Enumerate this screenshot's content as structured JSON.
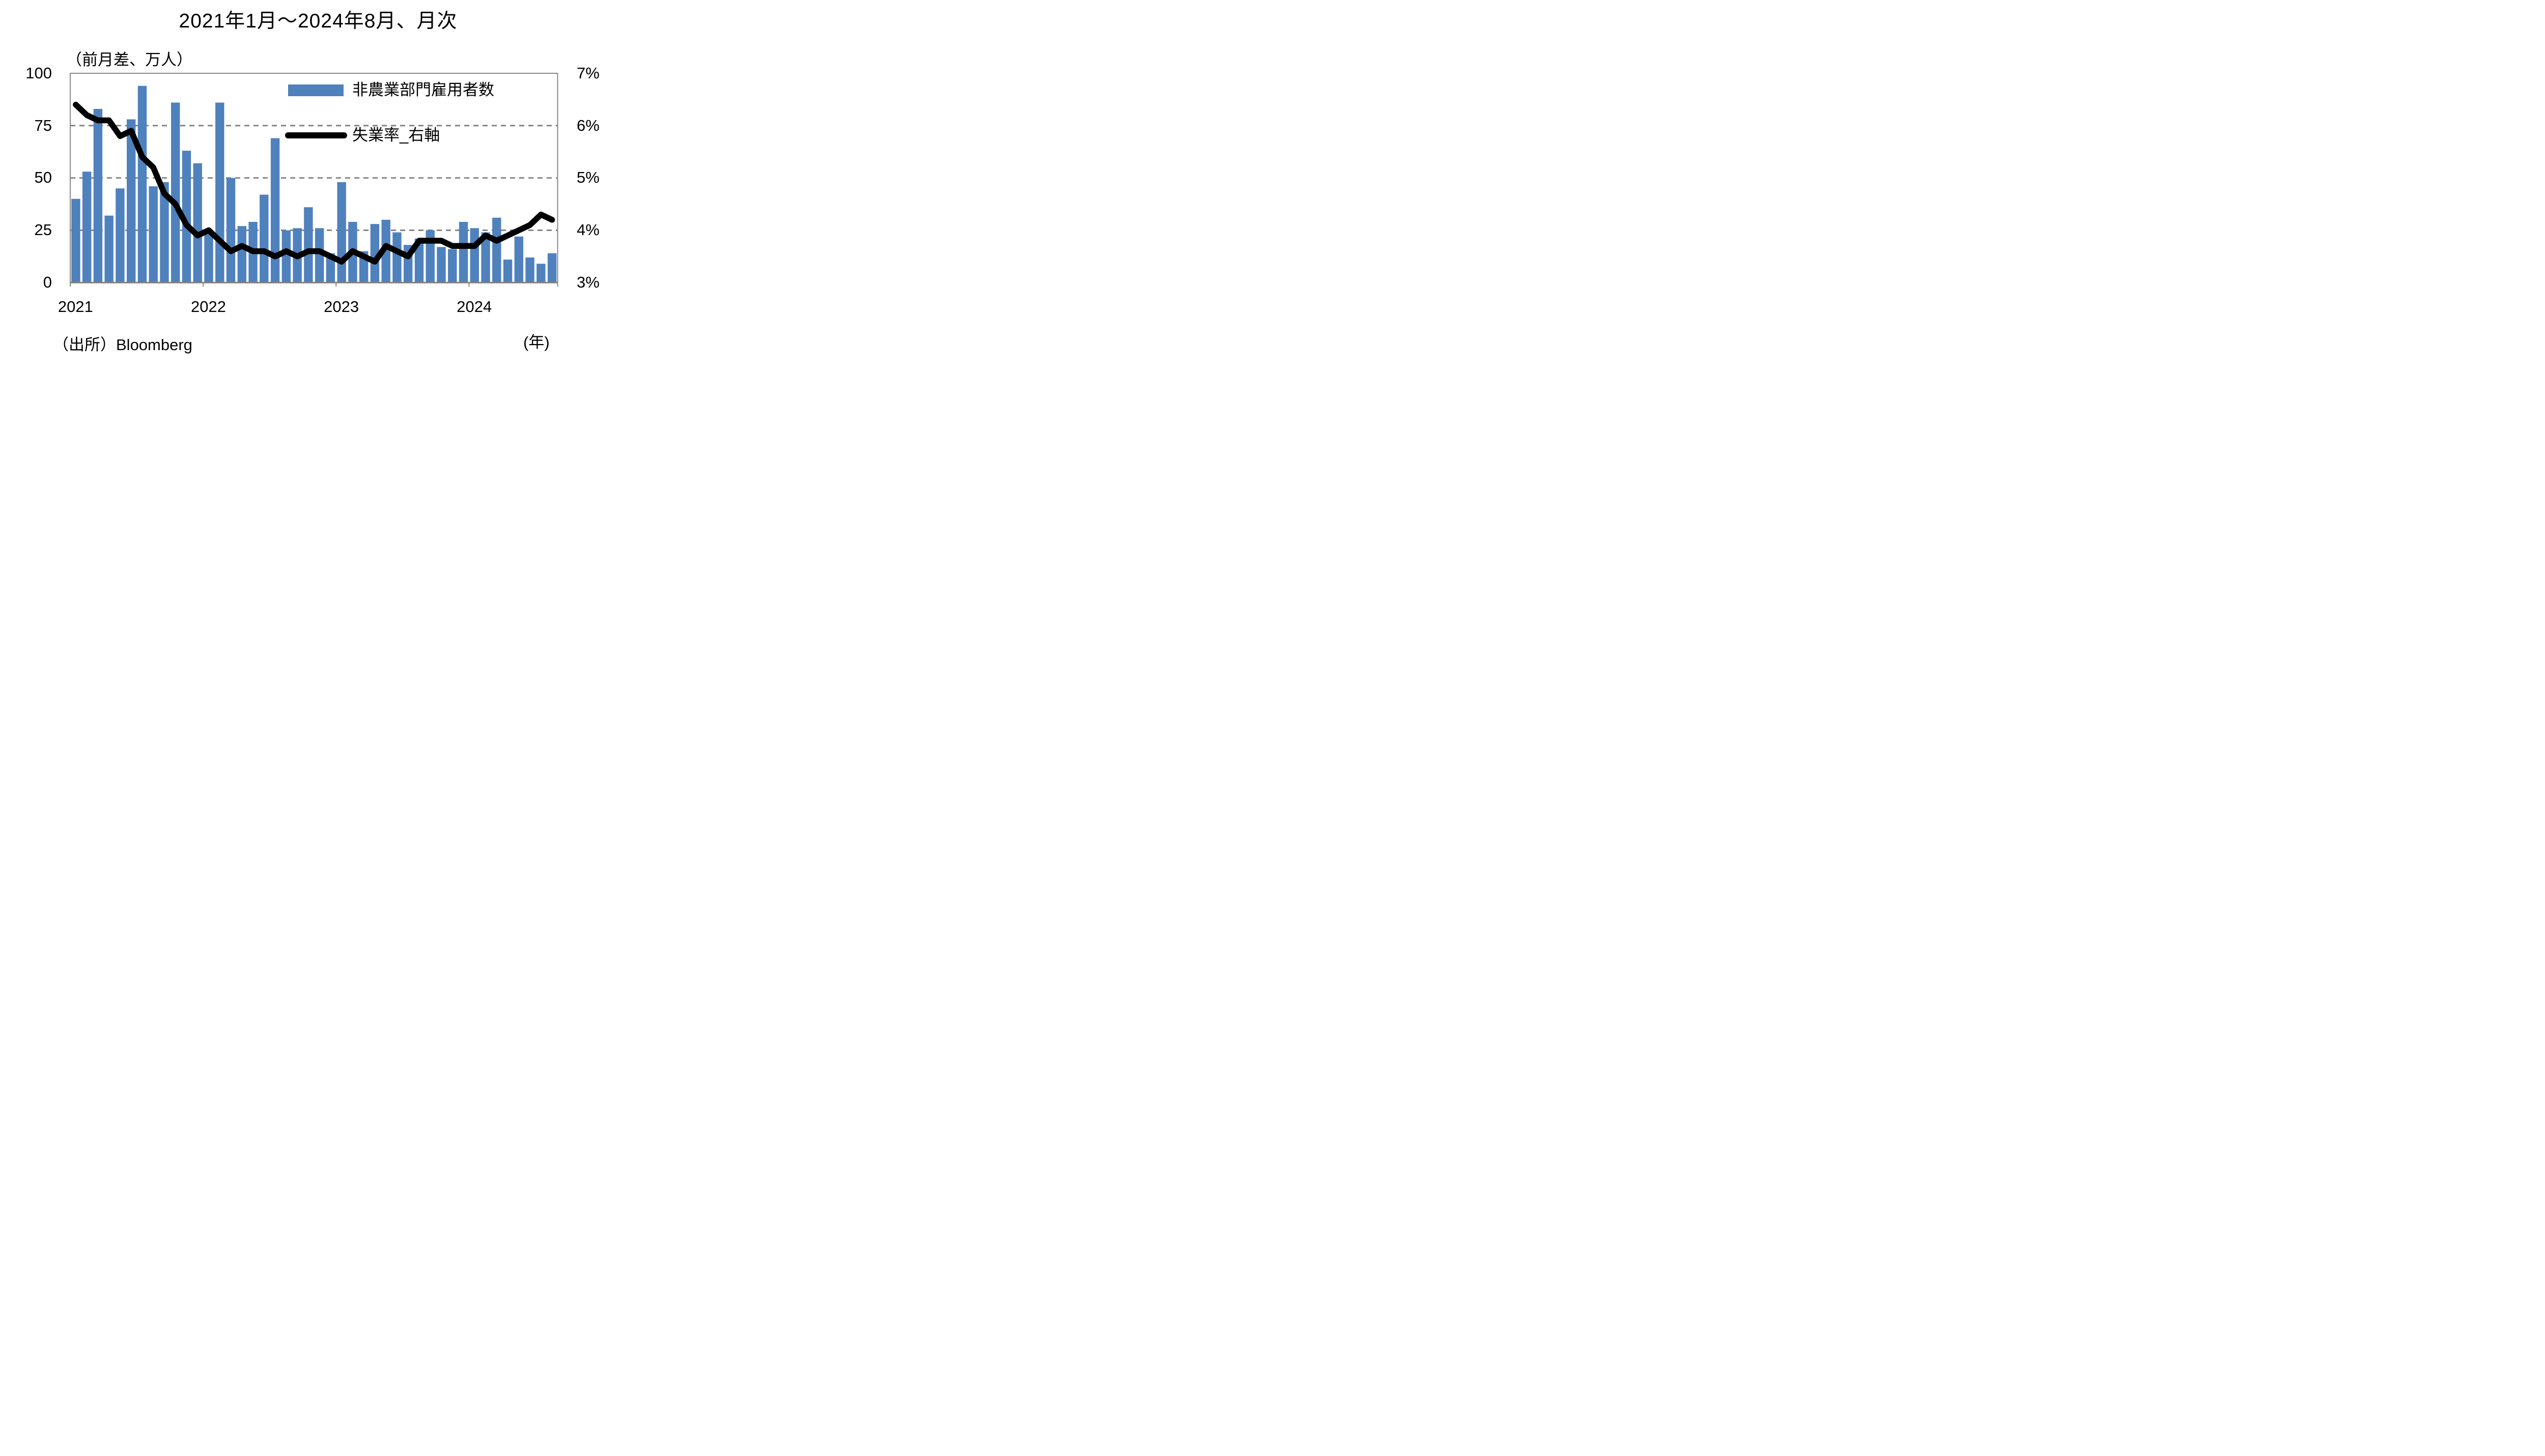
{
  "title": "2021年1月～2024年8月、月次",
  "left_axis_unit_label": "（前月差、万人）",
  "x_axis_unit_label": "(年)",
  "source": "（出所）Bloomberg",
  "legend": {
    "bars": "非農業部門雇用者数",
    "line": "失業率_右軸"
  },
  "colors": {
    "bar": "#4f81bd",
    "line": "#000000",
    "gridline": "#808080",
    "border": "#898989"
  },
  "chart_data": {
    "type": "bar",
    "subtype": "bar-line-dual-axis",
    "title": "2021年1月～2024年8月、月次",
    "xlabel": "(年)",
    "ylabel_left": "（前月差、万人）",
    "grid": "dashed horizontal gridlines at left 25/50/75 (right 4%/5%/6%)",
    "legend_position": "top-right inside plot",
    "categories": [
      "2021-01",
      "2021-02",
      "2021-03",
      "2021-04",
      "2021-05",
      "2021-06",
      "2021-07",
      "2021-08",
      "2021-09",
      "2021-10",
      "2021-11",
      "2021-12",
      "2022-01",
      "2022-02",
      "2022-03",
      "2022-04",
      "2022-05",
      "2022-06",
      "2022-07",
      "2022-08",
      "2022-09",
      "2022-10",
      "2022-11",
      "2022-12",
      "2023-01",
      "2023-02",
      "2023-03",
      "2023-04",
      "2023-05",
      "2023-06",
      "2023-07",
      "2023-08",
      "2023-09",
      "2023-10",
      "2023-11",
      "2023-12",
      "2024-01",
      "2024-02",
      "2024-03",
      "2024-04",
      "2024-05",
      "2024-06",
      "2024-07",
      "2024-08"
    ],
    "series": [
      {
        "name": "非農業部門雇用者数",
        "type": "bar",
        "axis": "left",
        "unit": "万人（前月差）",
        "values": [
          40,
          53,
          83,
          32,
          45,
          78,
          94,
          46,
          48,
          86,
          63,
          57,
          25,
          86,
          50,
          27,
          29,
          42,
          69,
          25,
          26,
          36,
          26,
          14,
          48,
          29,
          15,
          28,
          30,
          24,
          18,
          21,
          25,
          17,
          16,
          29,
          26,
          24,
          31,
          11,
          22,
          12,
          9,
          14
        ]
      },
      {
        "name": "失業率_右軸",
        "type": "line",
        "axis": "right",
        "unit": "%",
        "values": [
          6.4,
          6.2,
          6.1,
          6.1,
          5.8,
          5.9,
          5.4,
          5.2,
          4.7,
          4.5,
          4.1,
          3.9,
          4.0,
          3.8,
          3.6,
          3.7,
          3.6,
          3.6,
          3.5,
          3.6,
          3.5,
          3.6,
          3.6,
          3.5,
          3.4,
          3.6,
          3.5,
          3.4,
          3.7,
          3.6,
          3.5,
          3.8,
          3.8,
          3.8,
          3.7,
          3.7,
          3.7,
          3.9,
          3.8,
          3.9,
          4.0,
          4.1,
          4.3,
          4.2
        ]
      }
    ],
    "left_axis": {
      "range": [
        0,
        100
      ],
      "ticks": [
        {
          "label": "100",
          "value": 100
        },
        {
          "label": "75",
          "value": 75
        },
        {
          "label": "50",
          "value": 50
        },
        {
          "label": "25",
          "value": 25
        },
        {
          "label": "0",
          "value": 0
        }
      ]
    },
    "right_axis": {
      "range": [
        3,
        7
      ],
      "ticks": [
        {
          "label": "7%",
          "value": 7
        },
        {
          "label": "6%",
          "value": 6
        },
        {
          "label": "5%",
          "value": 5
        },
        {
          "label": "4%",
          "value": 4
        },
        {
          "label": "3%",
          "value": 3
        }
      ]
    },
    "x_axis": {
      "ticks": [
        {
          "label": "2021",
          "month_index": 0
        },
        {
          "label": "2022",
          "month_index": 12
        },
        {
          "label": "2023",
          "month_index": 24
        },
        {
          "label": "2024",
          "month_index": 36
        }
      ]
    },
    "gridline_values_left": [
      75,
      50,
      25
    ]
  }
}
